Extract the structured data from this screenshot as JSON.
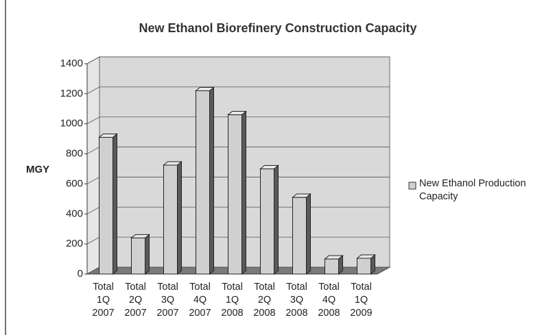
{
  "chart_data": {
    "type": "bar",
    "title": "New Ethanol Biorefinery Construction Capacity",
    "y_label": "MGY",
    "categories": [
      "Total 1Q 2007",
      "Total 2Q 2007",
      "Total 3Q 2007",
      "Total 4Q 2007",
      "Total 1Q 2008",
      "Total 2Q 2008",
      "Total 3Q 2008",
      "Total 4Q 2008",
      "Total 1Q 2009"
    ],
    "series": [
      {
        "name": "New Ethanol Production Capacity",
        "color": "#d0d0d0",
        "values": [
          910,
          240,
          725,
          1220,
          1060,
          700,
          510,
          100,
          105
        ]
      }
    ],
    "ylim": [
      0,
      1400
    ],
    "yticks": [
      0,
      200,
      400,
      600,
      800,
      1000,
      1200,
      1400
    ],
    "grid": true,
    "legend": "right"
  }
}
